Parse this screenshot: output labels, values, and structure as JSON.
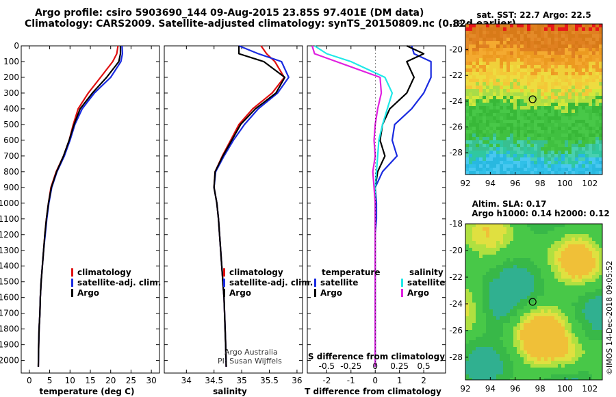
{
  "header": {
    "line1": "Argo profile: csiro 5903690_144 09-Aug-2015 23.85S 97.401E (DM data)",
    "line2": "Climatology: CARS2009. Satellite-adjusted climatology: synTS_20150809.nc (0.82d earlier)"
  },
  "footer_vertical": "©IMOS 14-Dec-2018 09:05:52",
  "colors": {
    "climatology": "#e01010",
    "satellite": "#1a2be0",
    "argo": "#000000",
    "sat_salinity": "#20e8e8",
    "argo_salinity": "#e020e0"
  },
  "chart_data": [
    {
      "type": "line",
      "title": "",
      "xlabel": "temperature (deg C)",
      "ylabel": "depth (dbar)",
      "xlim": [
        -2,
        32
      ],
      "ylim": [
        2080,
        0
      ],
      "xticks": [
        0,
        5,
        10,
        15,
        20,
        25,
        30
      ],
      "yticks": [
        0,
        100,
        200,
        300,
        400,
        500,
        600,
        700,
        800,
        900,
        1000,
        1100,
        1200,
        1300,
        1400,
        1500,
        1600,
        1700,
        1800,
        1900,
        2000
      ],
      "legend": [
        "climatology",
        "satellite-adj. clim.",
        "Argo"
      ],
      "series": [
        {
          "name": "climatology",
          "color": "#e01010",
          "x": [
            21.8,
            21.5,
            20.5,
            17.5,
            14.5,
            12.0,
            10.8,
            9.8,
            8.4,
            6.6,
            5.3,
            4.7,
            4.2,
            3.8,
            3.5,
            3.2,
            2.9,
            2.7,
            2.6,
            2.4,
            2.3,
            2.2
          ],
          "depth": [
            0,
            50,
            100,
            200,
            300,
            400,
            500,
            600,
            700,
            800,
            900,
            1000,
            1100,
            1200,
            1300,
            1400,
            1500,
            1600,
            1700,
            1800,
            1900,
            2040
          ]
        },
        {
          "name": "satellite-adj. clim.",
          "color": "#1a2be0",
          "x": [
            22.8,
            22.9,
            22.5,
            20.0,
            16.0,
            13.0,
            11.2,
            10.0,
            8.6,
            6.8,
            5.5,
            4.8,
            4.3,
            3.9,
            3.5,
            3.2,
            2.9,
            2.7,
            2.6,
            2.4,
            2.3,
            2.2
          ],
          "depth": [
            0,
            50,
            100,
            200,
            300,
            400,
            500,
            600,
            700,
            800,
            900,
            1000,
            1100,
            1200,
            1300,
            1400,
            1500,
            1600,
            1700,
            1800,
            1900,
            2040
          ]
        },
        {
          "name": "Argo",
          "color": "#000000",
          "x": [
            22.4,
            22.4,
            22.0,
            19.0,
            15.5,
            12.5,
            11.0,
            9.8,
            8.4,
            6.7,
            5.4,
            4.7,
            4.2,
            3.8,
            3.5,
            3.2,
            2.9,
            2.7,
            2.6,
            2.4,
            2.3,
            2.2
          ],
          "depth": [
            0,
            50,
            100,
            200,
            300,
            400,
            500,
            600,
            700,
            800,
            900,
            1000,
            1100,
            1200,
            1300,
            1400,
            1500,
            1600,
            1700,
            1800,
            1900,
            2040
          ]
        }
      ]
    },
    {
      "type": "line",
      "title": "",
      "xlabel": "salinity",
      "ylabel": "depth (dbar)",
      "xlim": [
        33.6,
        36.1
      ],
      "ylim": [
        2080,
        0
      ],
      "xticks": [
        34,
        34.5,
        35,
        35.5,
        36
      ],
      "legend": [
        "climatology",
        "satellite-adj. clim.",
        "Argo"
      ],
      "annotations": [
        "Argo Australia",
        "PI: Susan Wijffels"
      ],
      "series": [
        {
          "name": "climatology",
          "color": "#e01010",
          "x": [
            35.35,
            35.45,
            35.6,
            35.77,
            35.55,
            35.2,
            34.95,
            34.8,
            34.65,
            34.52,
            34.5,
            34.55,
            34.58,
            34.6,
            34.62,
            34.64,
            34.66,
            34.68,
            34.69,
            34.7,
            34.71,
            34.72
          ],
          "depth": [
            0,
            50,
            100,
            200,
            300,
            400,
            500,
            600,
            700,
            800,
            900,
            1000,
            1100,
            1200,
            1300,
            1400,
            1500,
            1600,
            1700,
            1800,
            1900,
            2040
          ]
        },
        {
          "name": "satellite-adj. clim.",
          "color": "#1a2be0",
          "x": [
            34.95,
            35.3,
            35.72,
            35.85,
            35.65,
            35.3,
            35.05,
            34.85,
            34.68,
            34.53,
            34.5,
            34.55,
            34.58,
            34.6,
            34.62,
            34.64,
            34.66,
            34.68,
            34.69,
            34.7,
            34.71,
            34.72
          ],
          "depth": [
            0,
            50,
            100,
            200,
            300,
            400,
            500,
            600,
            700,
            800,
            900,
            1000,
            1100,
            1200,
            1300,
            1400,
            1500,
            1600,
            1700,
            1800,
            1900,
            2040
          ]
        },
        {
          "name": "Argo",
          "color": "#000000",
          "x": [
            34.95,
            34.95,
            35.4,
            35.78,
            35.62,
            35.25,
            34.98,
            34.82,
            34.66,
            34.52,
            34.5,
            34.55,
            34.58,
            34.6,
            34.62,
            34.64,
            34.66,
            34.68,
            34.69,
            34.7,
            34.71,
            34.72
          ],
          "depth": [
            0,
            50,
            100,
            200,
            300,
            400,
            500,
            600,
            700,
            800,
            900,
            1000,
            1100,
            1200,
            1300,
            1400,
            1500,
            1600,
            1700,
            1800,
            1900,
            2040
          ]
        }
      ]
    },
    {
      "type": "line",
      "title": "S difference from climatology",
      "xlabel": "T difference from climatology",
      "ylabel": "depth (dbar)",
      "xlim": [
        -2.8,
        2.9
      ],
      "ylim": [
        2080,
        0
      ],
      "xticks": [
        -2,
        -1,
        0,
        1,
        2
      ],
      "top_axis_label": "S difference from climatology",
      "s_ticks": [
        "-0.5",
        "-0.25",
        "0",
        "0.25",
        "0.5"
      ],
      "s_ticks_values": [
        -0.5,
        -0.25,
        0,
        0.25,
        0.5
      ],
      "s_scale": 4,
      "legend_temperature": {
        "heading": "temperature",
        "items": [
          "satellite",
          "Argo"
        ]
      },
      "legend_salinity": {
        "heading": "salinity",
        "items": [
          "satellite",
          "Argo"
        ]
      },
      "series": [
        {
          "name": "temperature satellite",
          "color": "#1a2be0",
          "x": [
            1.5,
            1.6,
            2.3,
            2.3,
            2.0,
            1.5,
            0.8,
            0.7,
            0.9,
            0.3,
            0.0,
            0.05,
            0.05,
            0.0,
            0.0,
            0.0,
            0.0,
            0.0,
            0.0,
            0.0,
            0.0,
            0.0
          ],
          "depth": [
            0,
            50,
            100,
            200,
            300,
            400,
            500,
            600,
            700,
            800,
            900,
            1000,
            1100,
            1200,
            1300,
            1400,
            1500,
            1600,
            1700,
            1800,
            1900,
            2040
          ]
        },
        {
          "name": "temperature Argo",
          "color": "#000000",
          "x": [
            1.3,
            2.0,
            1.3,
            1.6,
            1.3,
            0.6,
            0.3,
            0.2,
            0.4,
            0.1,
            0.0,
            0.0,
            0.0,
            0.0,
            0.0,
            0.0,
            0.0,
            0.0,
            0.0,
            0.0,
            0.0,
            0.0
          ],
          "depth": [
            0,
            50,
            100,
            200,
            300,
            400,
            500,
            600,
            700,
            800,
            900,
            1000,
            1100,
            1200,
            1300,
            1400,
            1500,
            1600,
            1700,
            1800,
            1900,
            2040
          ]
        },
        {
          "name": "salinity satellite",
          "color": "#20e8e8",
          "x": [
            -2.5,
            -2.0,
            -1.0,
            0.4,
            0.7,
            0.5,
            0.3,
            0.15,
            0.1,
            0.05,
            0.0,
            0.0,
            0.0,
            0.0,
            0.0,
            0.0,
            0.0,
            0.0,
            0.0,
            0.0,
            0.0,
            0.0
          ],
          "depth": [
            0,
            50,
            100,
            200,
            300,
            400,
            500,
            600,
            700,
            800,
            900,
            1000,
            1100,
            1200,
            1300,
            1400,
            1500,
            1600,
            1700,
            1800,
            1900,
            2040
          ]
        },
        {
          "name": "salinity Argo",
          "color": "#e020e0",
          "x": [
            -2.6,
            -2.5,
            -1.6,
            0.2,
            0.25,
            0.1,
            0.0,
            -0.05,
            0.0,
            -0.1,
            -0.05,
            0.0,
            0.0,
            0.0,
            0.0,
            0.0,
            0.0,
            0.0,
            0.0,
            0.0,
            0.0,
            0.0
          ],
          "depth": [
            0,
            50,
            100,
            200,
            300,
            400,
            500,
            600,
            700,
            800,
            900,
            1000,
            1100,
            1200,
            1300,
            1400,
            1500,
            1600,
            1700,
            1800,
            1900,
            2040
          ]
        }
      ]
    },
    {
      "type": "heatmap",
      "title": "sat. SST: 22.7 Argo: 22.5",
      "xlim": [
        92,
        103
      ],
      "ylim": [
        -29.7,
        -18
      ],
      "xticks": [
        92,
        94,
        96,
        98,
        100,
        102
      ],
      "yticks": [
        -18,
        -20,
        -22,
        -24,
        -26,
        -28
      ],
      "marker": {
        "lon": 97.4,
        "lat": -23.85
      }
    },
    {
      "type": "heatmap",
      "title": "Altim. SLA: 0.17",
      "subtitle": "Argo h1000: 0.14 h2000: 0.12",
      "xlim": [
        92,
        103
      ],
      "ylim": [
        -29.7,
        -18
      ],
      "xticks": [
        92,
        94,
        96,
        98,
        100,
        102
      ],
      "yticks": [
        -18,
        -20,
        -22,
        -24,
        -26,
        -28
      ],
      "marker": {
        "lon": 97.4,
        "lat": -23.85
      }
    }
  ]
}
